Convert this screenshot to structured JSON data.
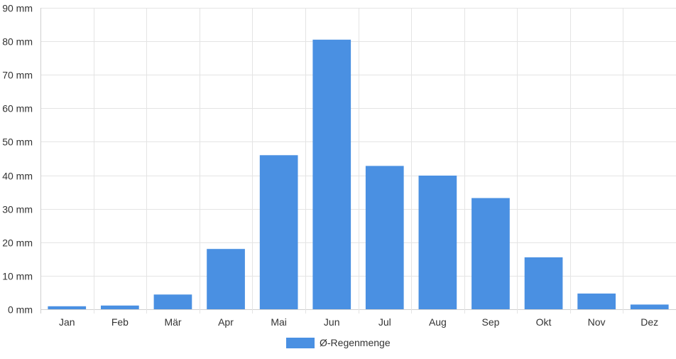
{
  "chart_data": {
    "type": "bar",
    "categories": [
      "Jan",
      "Feb",
      "Mär",
      "Apr",
      "Mai",
      "Jun",
      "Jul",
      "Aug",
      "Sep",
      "Okt",
      "Nov",
      "Dez"
    ],
    "series": [
      {
        "name": "Ø-Regenmenge",
        "color": "#4a90e2",
        "values": [
          0.9,
          1.1,
          4.4,
          18.0,
          46.0,
          80.5,
          42.8,
          39.9,
          33.2,
          15.5,
          4.7,
          1.4
        ]
      }
    ],
    "ylim": [
      0,
      90
    ],
    "yticks": [
      0,
      10,
      20,
      30,
      40,
      50,
      60,
      70,
      80,
      90
    ],
    "ytick_suffix": " mm",
    "grid": true,
    "legend_position": "bottom-center",
    "title": "",
    "xlabel": "",
    "ylabel": ""
  }
}
